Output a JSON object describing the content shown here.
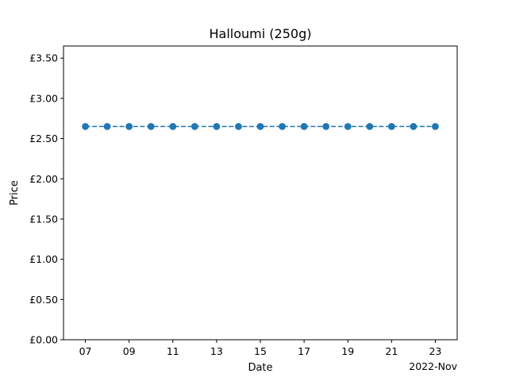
{
  "chart_data": {
    "type": "line",
    "title": "Halloumi (250g)",
    "xlabel": "Date",
    "ylabel": "Price",
    "x_offset_label": "2022-Nov",
    "x": [
      "2022-11-07",
      "2022-11-08",
      "2022-11-09",
      "2022-11-10",
      "2022-11-11",
      "2022-11-12",
      "2022-11-13",
      "2022-11-14",
      "2022-11-15",
      "2022-11-16",
      "2022-11-17",
      "2022-11-18",
      "2022-11-19",
      "2022-11-20",
      "2022-11-21",
      "2022-11-22",
      "2022-11-23"
    ],
    "series": [
      {
        "values": [
          2.65,
          2.65,
          2.65,
          2.65,
          2.65,
          2.65,
          2.65,
          2.65,
          2.65,
          2.65,
          2.65,
          2.65,
          2.65,
          2.65,
          2.65,
          2.65,
          2.65
        ],
        "color": "#1f77b4",
        "line_style": "dashed",
        "marker": "circle"
      }
    ],
    "xlim": [
      "2022-11-06",
      "2022-11-24"
    ],
    "ylim": [
      0,
      3.65
    ],
    "x_ticks": [
      "07",
      "09",
      "11",
      "13",
      "15",
      "17",
      "19",
      "21",
      "23"
    ],
    "x_tick_values": [
      "2022-11-07",
      "2022-11-09",
      "2022-11-11",
      "2022-11-13",
      "2022-11-15",
      "2022-11-17",
      "2022-11-19",
      "2022-11-21",
      "2022-11-23"
    ],
    "y_ticks": [
      "£0.00",
      "£0.50",
      "£1.00",
      "£1.50",
      "£2.00",
      "£2.50",
      "£3.00",
      "£3.50"
    ],
    "y_tick_values": [
      0,
      0.5,
      1.0,
      1.5,
      2.0,
      2.5,
      3.0,
      3.5
    ],
    "grid": false,
    "legend": "none"
  }
}
